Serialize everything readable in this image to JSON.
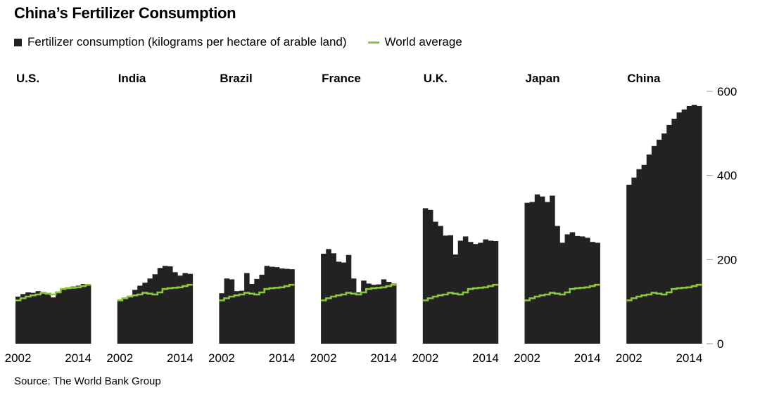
{
  "title": "China’s Fertilizer Consumption",
  "legend": {
    "fertilizer": "Fertilizer consumption (kilograms per hectare of arable land)",
    "world": "World average"
  },
  "source": "Source: The World Bank Group",
  "colors": {
    "bar": "#222222",
    "world": "#8dc63f"
  },
  "chart_data": {
    "type": "area",
    "ylim": [
      0,
      600
    ],
    "yticks": [
      0,
      200,
      400,
      600
    ],
    "x": [
      2002,
      2003,
      2004,
      2005,
      2006,
      2007,
      2008,
      2009,
      2010,
      2011,
      2012,
      2013,
      2014,
      2015,
      2016
    ],
    "xtick_labels": [
      "2002",
      "2014"
    ],
    "world_average": [
      103,
      108,
      112,
      115,
      117,
      121,
      119,
      117,
      122,
      130,
      132,
      133,
      134,
      137,
      140
    ],
    "panels": [
      {
        "name": "U.S.",
        "values": [
          112,
          118,
          122,
          121,
          125,
          123,
          118,
          110,
          124,
          132,
          134,
          136,
          138,
          142,
          140
        ]
      },
      {
        "name": "India",
        "values": [
          105,
          107,
          112,
          128,
          138,
          145,
          155,
          165,
          180,
          185,
          184,
          170,
          162,
          168,
          166
        ]
      },
      {
        "name": "Brazil",
        "values": [
          120,
          155,
          153,
          125,
          126,
          168,
          142,
          154,
          164,
          185,
          183,
          182,
          179,
          178,
          177
        ]
      },
      {
        "name": "France",
        "values": [
          214,
          225,
          215,
          195,
          193,
          211,
          155,
          122,
          150,
          143,
          140,
          141,
          153,
          147,
          143
        ]
      },
      {
        "name": "U.K.",
        "values": [
          322,
          318,
          290,
          280,
          257,
          258,
          212,
          245,
          255,
          242,
          237,
          240,
          248,
          245,
          244
        ]
      },
      {
        "name": "Japan",
        "values": [
          335,
          337,
          355,
          350,
          337,
          352,
          280,
          240,
          260,
          265,
          256,
          255,
          252,
          242,
          240
        ]
      },
      {
        "name": "China",
        "values": [
          378,
          395,
          415,
          425,
          450,
          470,
          485,
          500,
          520,
          535,
          550,
          557,
          565,
          568,
          565
        ]
      }
    ]
  }
}
